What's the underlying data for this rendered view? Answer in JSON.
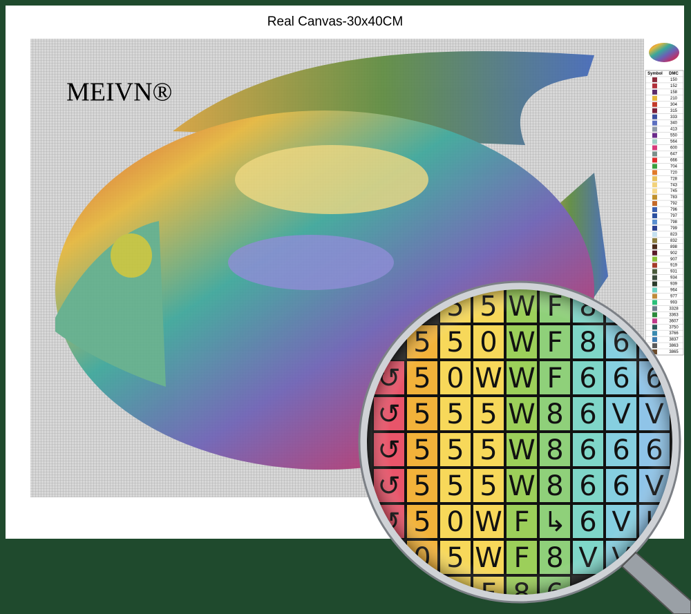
{
  "title": "Real Canvas-30x40CM",
  "brand": "MEIVN®",
  "legend": {
    "headers": [
      "Symbol",
      "DMC"
    ],
    "codes": [
      "150",
      "152",
      "158",
      "210",
      "304",
      "315",
      "333",
      "340",
      "413",
      "550",
      "564",
      "600",
      "647",
      "666",
      "704",
      "720",
      "728",
      "743",
      "745",
      "783",
      "792",
      "796",
      "797",
      "798",
      "799",
      "823",
      "832",
      "898",
      "902",
      "907",
      "919",
      "931",
      "934",
      "939",
      "964",
      "977",
      "993",
      "3328",
      "3363",
      "3607",
      "3750",
      "3766",
      "3837",
      "3863",
      "3865"
    ]
  },
  "magnifier": {
    "rows": [
      [
        "5",
        "5",
        "W",
        "F",
        "8",
        "↳"
      ],
      [
        "5",
        "5",
        "0",
        "W",
        "F",
        "8",
        "6",
        "6"
      ],
      [
        "↺",
        "5",
        "0",
        "W",
        "W",
        "F",
        "6",
        "6",
        "6"
      ],
      [
        "↺",
        "5",
        "5",
        "5",
        "W",
        "8",
        "6",
        "V",
        "V"
      ],
      [
        "↺",
        "5",
        "5",
        "5",
        "W",
        "8",
        "6",
        "6",
        "6"
      ],
      [
        "↺",
        "5",
        "5",
        "5",
        "W",
        "8",
        "6",
        "6",
        "V"
      ],
      [
        "↺",
        "5",
        "0",
        "W",
        "F",
        "↳",
        "6",
        "V",
        "K"
      ],
      [
        "0",
        "5",
        "W",
        "F",
        "8",
        "V",
        "V"
      ],
      [
        "5",
        "5",
        "F",
        "8",
        "6"
      ]
    ]
  }
}
